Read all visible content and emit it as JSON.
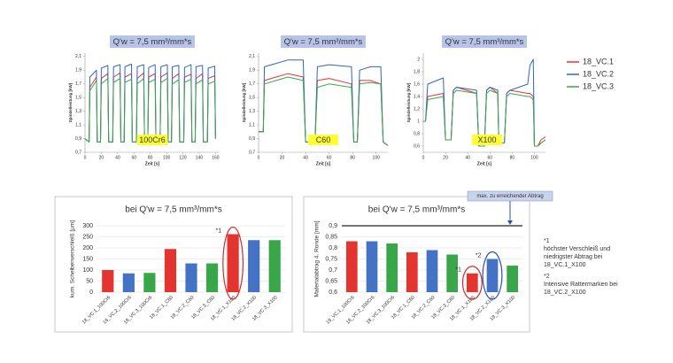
{
  "chart_data": [
    {
      "type": "line",
      "title": "Q'w = 7,5 mm³/mm*s",
      "material": "100Cr6",
      "ylabel": "Spindelleistung [kW]",
      "xlabel": "Zeit [s]",
      "legend": "right",
      "x": [
        0,
        5,
        6,
        14,
        15,
        19,
        20,
        28,
        29,
        34,
        35,
        43,
        44,
        48,
        49,
        57,
        58,
        63,
        64,
        72,
        73,
        77,
        78,
        86,
        87,
        92,
        93,
        101,
        102,
        106,
        107,
        115,
        116,
        121,
        122,
        130,
        131,
        135,
        136,
        144,
        145,
        150,
        151,
        159,
        160
      ],
      "series": [
        {
          "name": "18_VC.1",
          "color": "#e3342f",
          "values": [
            0.9,
            0.85,
            1.65,
            1.8,
            0.85,
            0.85,
            1.78,
            1.85,
            0.85,
            0.85,
            1.8,
            1.86,
            0.85,
            0.85,
            1.8,
            1.85,
            0.85,
            0.85,
            1.78,
            1.86,
            0.85,
            0.85,
            1.8,
            1.85,
            0.85,
            0.85,
            1.8,
            1.86,
            0.85,
            0.85,
            1.78,
            1.85,
            0.85,
            0.85,
            1.8,
            1.84,
            0.85,
            0.85,
            1.78,
            1.85,
            0.85,
            0.85,
            1.78,
            1.82,
            0.9
          ]
        },
        {
          "name": "18_VC.2",
          "color": "#2f64c8",
          "values": [
            0.9,
            0.85,
            1.8,
            1.9,
            0.85,
            0.85,
            1.93,
            1.97,
            0.85,
            0.85,
            1.95,
            1.98,
            0.85,
            0.85,
            1.95,
            1.99,
            0.85,
            0.85,
            1.95,
            1.98,
            0.85,
            0.85,
            1.94,
            1.98,
            0.85,
            0.85,
            1.95,
            1.98,
            0.85,
            0.85,
            1.95,
            1.97,
            0.85,
            0.85,
            1.94,
            1.98,
            0.85,
            0.85,
            1.95,
            1.97,
            0.85,
            0.85,
            1.93,
            1.96,
            0.9
          ]
        },
        {
          "name": "18_VC.3",
          "color": "#3aa64a",
          "values": [
            0.9,
            0.85,
            1.6,
            1.75,
            0.85,
            0.85,
            1.7,
            1.78,
            0.85,
            0.85,
            1.72,
            1.78,
            0.85,
            0.85,
            1.72,
            1.77,
            0.85,
            0.85,
            1.7,
            1.78,
            0.85,
            0.85,
            1.72,
            1.77,
            0.85,
            0.85,
            1.72,
            1.78,
            0.85,
            0.85,
            1.7,
            1.76,
            0.85,
            0.85,
            1.72,
            1.77,
            0.85,
            0.85,
            1.7,
            1.76,
            0.85,
            0.85,
            1.7,
            1.74,
            0.9
          ]
        }
      ],
      "xlim": [
        0,
        165
      ],
      "xticks": [
        0,
        20,
        40,
        60,
        80,
        100,
        120,
        140,
        160
      ],
      "ylim": [
        0.7,
        2.15
      ],
      "yticks": [
        {
          "value": 0.7,
          "label": "0,7"
        },
        {
          "value": 0.9,
          "label": "0,9"
        },
        {
          "value": 1.1,
          "label": "1,1"
        },
        {
          "value": 1.3,
          "label": "1,3"
        },
        {
          "value": 1.5,
          "label": "1,5"
        },
        {
          "value": 1.7,
          "label": "1,7"
        },
        {
          "value": 1.9,
          "label": "1,9"
        },
        {
          "value": 2.1,
          "label": "2,1"
        }
      ]
    },
    {
      "type": "line",
      "title": "Q'w = 7,5 mm³/mm*s",
      "material": "C60",
      "ylabel": "Spindelleistung [kW]",
      "xlabel": "Zeit [s]",
      "x": [
        0,
        4,
        5,
        15,
        25,
        38,
        40,
        48,
        50,
        60,
        79,
        81,
        84,
        86,
        95,
        104,
        106,
        110
      ],
      "series": [
        {
          "color": "#e3342f",
          "values": [
            1.0,
            1.0,
            1.75,
            1.8,
            1.85,
            1.8,
            0.85,
            0.85,
            1.75,
            1.78,
            1.7,
            0.85,
            0.85,
            1.75,
            1.75,
            1.7,
            0.85,
            0.8
          ]
        },
        {
          "color": "#2f64c8",
          "values": [
            1.0,
            1.0,
            1.95,
            2.0,
            2.05,
            2.05,
            0.85,
            0.85,
            1.95,
            1.98,
            1.95,
            0.85,
            0.85,
            1.9,
            1.95,
            1.95,
            0.85,
            0.8
          ]
        },
        {
          "color": "#3aa64a",
          "values": [
            1.0,
            1.0,
            1.7,
            1.75,
            1.8,
            1.75,
            0.85,
            0.85,
            1.65,
            1.7,
            1.65,
            0.85,
            0.85,
            1.7,
            1.72,
            1.7,
            0.85,
            0.8
          ]
        }
      ],
      "xlim": [
        0,
        110
      ],
      "xticks": [
        0,
        20,
        40,
        60,
        80,
        100
      ],
      "ylim": [
        0.7,
        2.15
      ],
      "yticks": [
        {
          "value": 0.7,
          "label": "0,7"
        },
        {
          "value": 0.9,
          "label": "0,9"
        },
        {
          "value": 1.1,
          "label": "1,1"
        },
        {
          "value": 1.3,
          "label": "1,3"
        },
        {
          "value": 1.5,
          "label": "1,5"
        },
        {
          "value": 1.7,
          "label": "1,7"
        },
        {
          "value": 1.9,
          "label": "1,9"
        },
        {
          "value": 2.1,
          "label": "2,1"
        }
      ]
    },
    {
      "type": "line",
      "title": "Q'w = 7,5 mm³/mm*s",
      "material": "X100",
      "ylabel": "Spindelleistung [kW]",
      "xlabel": "Zeit [s]",
      "x": [
        0,
        2,
        4,
        18,
        20,
        25,
        27,
        30,
        48,
        50,
        55,
        57,
        60,
        67,
        68,
        73,
        75,
        78,
        94,
        96,
        99,
        100,
        103,
        106,
        110
      ],
      "series": [
        {
          "color": "#e3342f",
          "values": [
            1.0,
            1.0,
            1.4,
            1.45,
            0.7,
            0.7,
            1.5,
            1.55,
            1.45,
            0.6,
            0.6,
            1.5,
            1.55,
            1.45,
            0.65,
            0.65,
            1.45,
            1.5,
            1.45,
            1.45,
            1.4,
            0.6,
            0.6,
            0.7,
            0.75
          ]
        },
        {
          "color": "#2f64c8",
          "values": [
            1.0,
            1.0,
            1.6,
            1.7,
            0.7,
            0.7,
            1.5,
            1.55,
            1.5,
            0.6,
            0.6,
            1.5,
            1.55,
            1.5,
            0.65,
            0.65,
            1.45,
            1.5,
            1.6,
            1.9,
            2.0,
            0.6,
            0.6,
            0.65,
            0.7
          ]
        },
        {
          "color": "#3aa64a",
          "values": [
            1.0,
            1.0,
            1.35,
            1.4,
            0.7,
            0.7,
            1.45,
            1.5,
            1.45,
            0.6,
            0.6,
            1.45,
            1.5,
            1.45,
            0.65,
            0.65,
            1.4,
            1.45,
            1.4,
            1.4,
            1.35,
            0.6,
            0.6,
            0.65,
            0.7
          ]
        }
      ],
      "xlim": [
        0,
        110
      ],
      "xticks": [
        0,
        20,
        40,
        60,
        80,
        100
      ],
      "ylim": [
        0.5,
        2.1
      ],
      "yticks": [
        {
          "value": 0.6,
          "label": "0,6"
        },
        {
          "value": 0.8,
          "label": "0,8"
        },
        1,
        {
          "value": 1.2,
          "label": "1,2"
        },
        {
          "value": 1.4,
          "label": "1,4"
        },
        {
          "value": 1.6,
          "label": "1,6"
        },
        {
          "value": 1.8,
          "label": "1,8"
        },
        2
      ]
    },
    {
      "type": "bar",
      "title": "bei Q'w = 7,5 mm³/mm*s",
      "ylabel": "kum. Scheibenverschleiß [µm]",
      "categories": [
        "18_VC.1_100Cr6",
        "18_VC.2_100Cr6",
        "18_VC.3_100Cr6",
        "18_VC.1_C60",
        "18_VC.2_C60",
        "18_VC.3_C60",
        "18_VC.1_X100",
        "18_VC.2_X100",
        "18_VC.3_X100"
      ],
      "values": [
        100,
        85,
        87,
        195,
        130,
        130,
        262,
        235,
        235
      ],
      "colors": [
        "#e3342f",
        "#4472c4",
        "#3aa64a",
        "#e3342f",
        "#4472c4",
        "#3aa64a",
        "#e3342f",
        "#4472c4",
        "#3aa64a"
      ],
      "ylim": [
        0,
        300
      ],
      "yticks": [
        0,
        50,
        100,
        150,
        200,
        250,
        300
      ],
      "grid": true,
      "highlights": [
        {
          "index": 6,
          "label": "*1",
          "color": "#d42a2a"
        }
      ]
    },
    {
      "type": "bar",
      "title": "bei Q'w = 7,5 mm³/mm*s",
      "ylabel": "Materialabtrag 4. Ronde [mm]",
      "categories": [
        "18_VC.1_100Cr6",
        "18_VC.2_100Cr6",
        "18_VC.3_100Cr6",
        "18_VC.1_C60",
        "18_VC.2_C60",
        "18_VC.3_C60",
        "18_VC.1_X100",
        "18_VC.2_X100",
        "18_VC.3_X100"
      ],
      "values": [
        0.83,
        0.83,
        0.82,
        0.78,
        0.79,
        0.77,
        0.685,
        0.75,
        0.72
      ],
      "colors": [
        "#e3342f",
        "#4472c4",
        "#3aa64a",
        "#e3342f",
        "#4472c4",
        "#3aa64a",
        "#e3342f",
        "#4472c4",
        "#3aa64a"
      ],
      "ylim": [
        0.6,
        0.9
      ],
      "yticks": [
        {
          "value": 0.6,
          "label": "0,6"
        },
        {
          "value": 0.65,
          "label": "0,65"
        },
        {
          "value": 0.7,
          "label": "0,7"
        },
        {
          "value": 0.75,
          "label": "0,75"
        },
        {
          "value": 0.8,
          "label": "0,8"
        },
        {
          "value": 0.85,
          "label": "0,85"
        },
        {
          "value": 0.9,
          "label": "0,9"
        }
      ],
      "grid": true,
      "refline": {
        "value": 0.9,
        "label": "max. zu erreichender Abtrag"
      },
      "highlights": [
        {
          "index": 6,
          "label": "*1",
          "color": "#d42a2a"
        },
        {
          "index": 7,
          "label": "*2",
          "color": "#2a4fb0"
        }
      ]
    }
  ],
  "notes": [
    {
      "marker": "*1",
      "text": "höchster Verschleiß und niedrigster Abtrag bei 18_VC.1_X100",
      "color": "#d42a2a"
    },
    {
      "marker": "*2",
      "text": "Intensive Rattermarken bei 18_VC.2_X100",
      "color": "#2a4fb0"
    }
  ]
}
